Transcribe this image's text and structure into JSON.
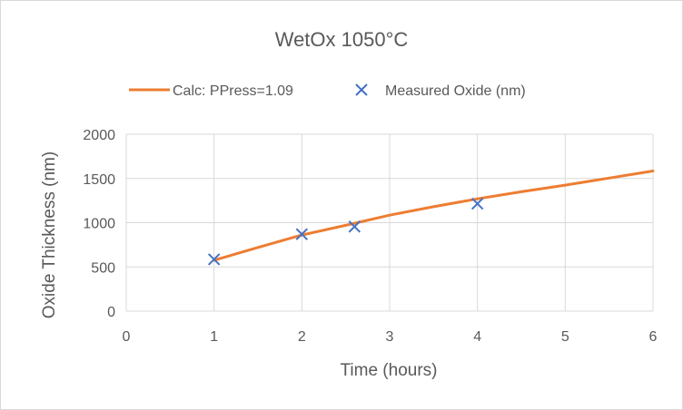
{
  "chart_data": {
    "type": "scatter",
    "title": "WetOx 1050°C",
    "xlabel": "Time (hours)",
    "ylabel": "Oxide Thickness (nm)",
    "xlim": [
      0,
      6
    ],
    "ylim": [
      0,
      2000
    ],
    "x_ticks": [
      0,
      1,
      2,
      3,
      4,
      5,
      6
    ],
    "y_ticks": [
      0,
      500,
      1000,
      1500,
      2000
    ],
    "grid": true,
    "legend_position": "top",
    "series": [
      {
        "name": "Calc: PPress=1.09",
        "kind": "line",
        "color": "#ED7D31",
        "x": [
          1,
          1.5,
          2,
          2.5,
          3,
          3.5,
          4,
          4.5,
          5,
          5.5,
          6
        ],
        "y": [
          575,
          720,
          860,
          970,
          1085,
          1180,
          1270,
          1350,
          1425,
          1505,
          1585
        ]
      },
      {
        "name": "Measured Oxide (nm)",
        "kind": "marker-x",
        "color": "#4472C4",
        "x": [
          1,
          2,
          2.6,
          4
        ],
        "y": [
          585,
          870,
          955,
          1215
        ]
      }
    ]
  }
}
